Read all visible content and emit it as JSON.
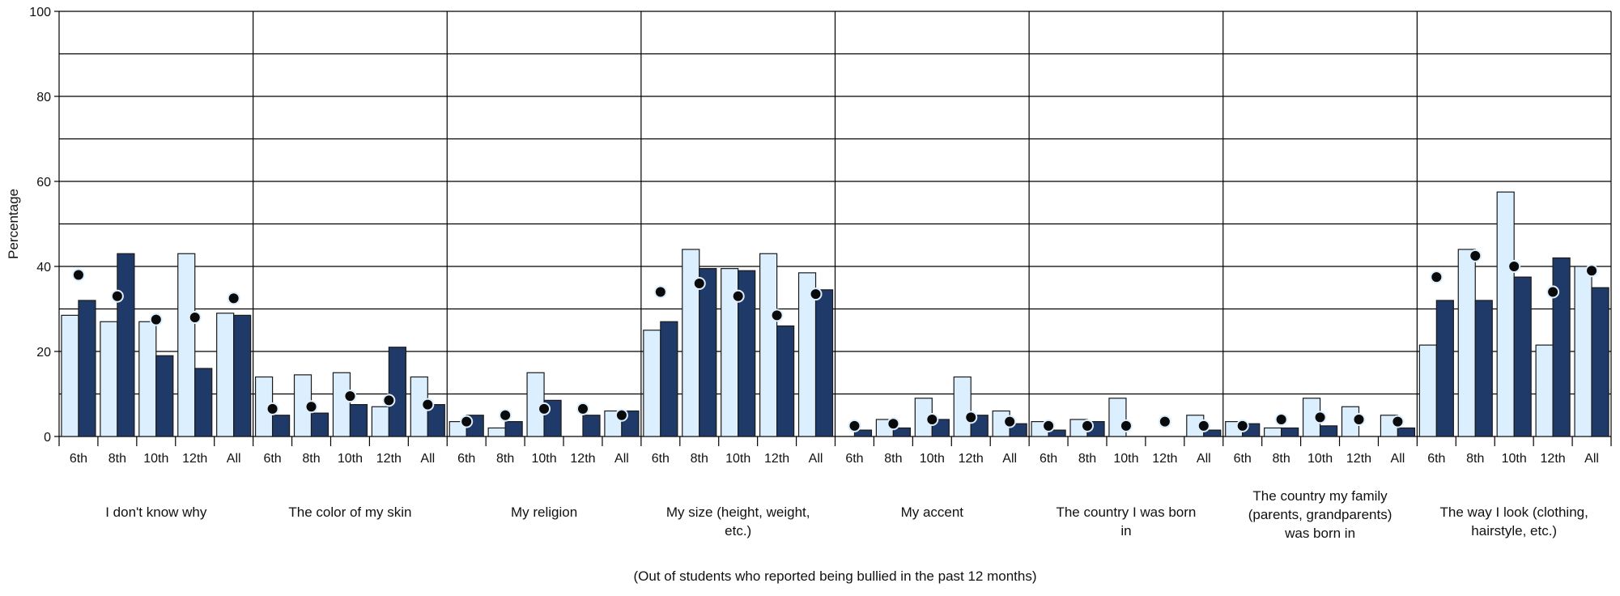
{
  "chart_data": {
    "type": "bar",
    "ylabel": "Percentage",
    "xlabel": "(Out of students who reported being bullied in the past 12 months)",
    "ylim": [
      0,
      100
    ],
    "yticks": [
      0,
      20,
      40,
      60,
      80,
      100
    ],
    "grid": true,
    "legend": "none",
    "grades": [
      "6th",
      "8th",
      "10th",
      "12th",
      "All"
    ],
    "groups": [
      {
        "label": "I don't know why",
        "lines": [
          "I don't know why"
        ],
        "light": [
          28.5,
          27,
          27,
          43,
          29
        ],
        "dark": [
          32,
          43,
          19,
          16,
          28.5
        ],
        "dots": [
          38,
          33,
          27.5,
          28,
          32.5
        ]
      },
      {
        "label": "The color of my skin",
        "lines": [
          "The color of my skin"
        ],
        "light": [
          14,
          14.5,
          15,
          7,
          14
        ],
        "dark": [
          5,
          5.5,
          7.5,
          21,
          7.5
        ],
        "dots": [
          6.5,
          7,
          9.5,
          8.5,
          7.5
        ]
      },
      {
        "label": "My religion",
        "lines": [
          "My religion"
        ],
        "light": [
          3.5,
          2,
          15,
          0,
          6
        ],
        "dark": [
          5,
          3.5,
          8.5,
          5,
          6
        ],
        "dots": [
          3.5,
          5,
          6.5,
          6.5,
          5
        ]
      },
      {
        "label": "My size (height, weight, etc.)",
        "lines": [
          "My size (height, weight,",
          "etc.)"
        ],
        "light": [
          25,
          44,
          39.5,
          43,
          38.5
        ],
        "dark": [
          27,
          39.5,
          39,
          26,
          34.5
        ],
        "dots": [
          34,
          36,
          33,
          28.5,
          33.5
        ]
      },
      {
        "label": "My accent",
        "lines": [
          "My accent"
        ],
        "light": [
          0,
          4,
          9,
          14,
          6
        ],
        "dark": [
          1.5,
          2,
          4,
          5,
          3
        ],
        "dots": [
          2.5,
          3,
          4,
          4.5,
          3.5
        ]
      },
      {
        "label": "The country I was born in",
        "lines": [
          "The country I was born",
          "in"
        ],
        "light": [
          3.5,
          4,
          9,
          0,
          5
        ],
        "dark": [
          1.5,
          3.5,
          0,
          0,
          1.5
        ],
        "dots": [
          2.5,
          2.5,
          2.5,
          3.5,
          2.5
        ]
      },
      {
        "label": "The country my family (parents, grandparents) was born in",
        "lines": [
          "The country my family",
          "(parents, grandparents)",
          "was born in"
        ],
        "light": [
          3.5,
          2,
          9,
          7,
          5
        ],
        "dark": [
          3,
          2,
          2.5,
          0,
          2
        ],
        "dots": [
          2.5,
          4,
          4.5,
          4,
          3.5
        ]
      },
      {
        "label": "The way I look (clothing, hairstyle, etc.)",
        "lines": [
          "The way I look (clothing,",
          "hairstyle, etc.)"
        ],
        "light": [
          21.5,
          44,
          57.5,
          21.5,
          40
        ],
        "dark": [
          32,
          32,
          37.5,
          42,
          35
        ],
        "dots": [
          37.5,
          42.5,
          40,
          34,
          39
        ]
      }
    ],
    "colors": {
      "light": "#dcefff",
      "dark": "#1f3a68",
      "dot": "#0a0a0a",
      "dot_ring": "#dcefff",
      "grid": "#000000"
    }
  }
}
